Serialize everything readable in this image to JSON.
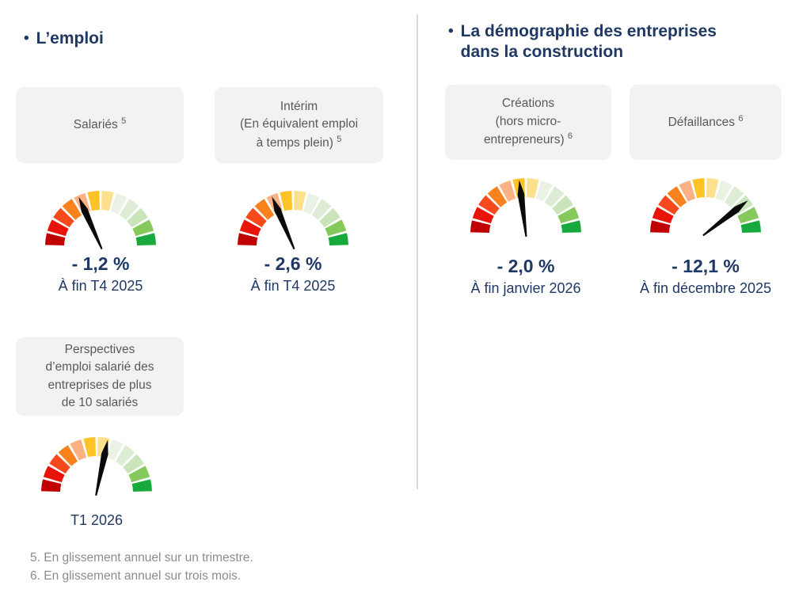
{
  "colors": {
    "navy": "#1F3864",
    "box_bg": "#F2F2F2",
    "box_text": "#595959",
    "footnote_gray": "#8C8C8C",
    "divider": "#D9D9D9",
    "needle": "#0A0A0A"
  },
  "gauge_palette": [
    "#C00000",
    "#E81409",
    "#F64A1C",
    "#F9821E",
    "#FBB183",
    "#FFC327",
    "#FCE08E",
    "#E9F2E3",
    "#DCECD5",
    "#CBE5BB",
    "#85C95D",
    "#17A93B"
  ],
  "sections": {
    "left": {
      "bullet": "•",
      "title": "L’emploi",
      "cards": {
        "salaries": {
          "label_lines": [
            {
              "text": "Salariés",
              "sup": "5"
            }
          ],
          "gauge": {
            "needle_deg": -24
          },
          "value": "- 1,2 %",
          "caption": "À fin T4 2025"
        },
        "interim": {
          "label_lines": [
            {
              "text": "Intérim"
            },
            {
              "text": "(En équivalent emploi"
            },
            {
              "text": "à temps plein)",
              "sup": "5"
            }
          ],
          "gauge": {
            "needle_deg": -23
          },
          "value": "- 2,6 %",
          "caption": "À fin T4 2025"
        },
        "perspectives": {
          "label_lines": [
            {
              "text": "Perspectives"
            },
            {
              "text": "d’emploi salarié des"
            },
            {
              "text": "entreprises de plus"
            },
            {
              "text": "de 10 salariés"
            }
          ],
          "gauge": {
            "needle_deg": 12
          },
          "caption": "T1 2026"
        }
      }
    },
    "right": {
      "bullet": "•",
      "title_lines": [
        "La démographie des entreprises",
        "dans la construction"
      ],
      "cards": {
        "creations": {
          "label_lines": [
            {
              "text": "Créations"
            },
            {
              "text": "(hors micro-"
            },
            {
              "text": "entrepreneurs)",
              "sup": "6"
            }
          ],
          "gauge": {
            "needle_deg": -7
          },
          "value": "- 2,0 %",
          "caption": "À fin janvier 2026"
        },
        "defaillances": {
          "label_lines": [
            {
              "text": "Défaillances",
              "sup": "6"
            }
          ],
          "gauge": {
            "needle_deg": 52
          },
          "value": "- 12,1 %",
          "caption": "À fin décembre 2025"
        }
      }
    }
  },
  "footnotes": [
    "5. En glissement annuel sur un trimestre.",
    "6. En glissement annuel sur trois mois."
  ],
  "chart_data": [
    {
      "type": "gauge",
      "section": "L’emploi",
      "title": "Salariés",
      "footnote_ref": "5",
      "value": -1.2,
      "unit": "%",
      "value_label": "- 1,2 %",
      "period": "À fin T4 2025",
      "scale": "red (left) to green (right), 12 segments",
      "needle": "left of center, in orange zone"
    },
    {
      "type": "gauge",
      "section": "L’emploi",
      "title": "Intérim (En équivalent emploi à temps plein)",
      "footnote_ref": "5",
      "value": -2.6,
      "unit": "%",
      "value_label": "- 2,6 %",
      "period": "À fin T4 2025",
      "scale": "red (left) to green (right), 12 segments",
      "needle": "left of center, in orange zone"
    },
    {
      "type": "gauge",
      "section": "L’emploi",
      "title": "Perspectives d’emploi salarié des entreprises de plus de 10 salariés",
      "value": null,
      "period": "T1 2026",
      "scale": "red (left) to green (right), 12 segments",
      "needle": "slightly right of center, in pale yellow zone"
    },
    {
      "type": "gauge",
      "section": "La démographie des entreprises dans la construction",
      "title": "Créations (hors micro-entrepreneurs)",
      "footnote_ref": "6",
      "value": -2.0,
      "unit": "%",
      "value_label": "- 2,0 %",
      "period": "À fin janvier 2026",
      "scale": "red (left) to green (right), 12 segments",
      "needle": "just left of center, near gold zone"
    },
    {
      "type": "gauge",
      "section": "La démographie des entreprises dans la construction",
      "title": "Défaillances",
      "footnote_ref": "6",
      "value": -12.1,
      "unit": "%",
      "value_label": "- 12,1 %",
      "period": "À fin décembre 2025",
      "scale": "red (left) to green (right), 12 segments",
      "needle": "far right, in green zone"
    }
  ]
}
